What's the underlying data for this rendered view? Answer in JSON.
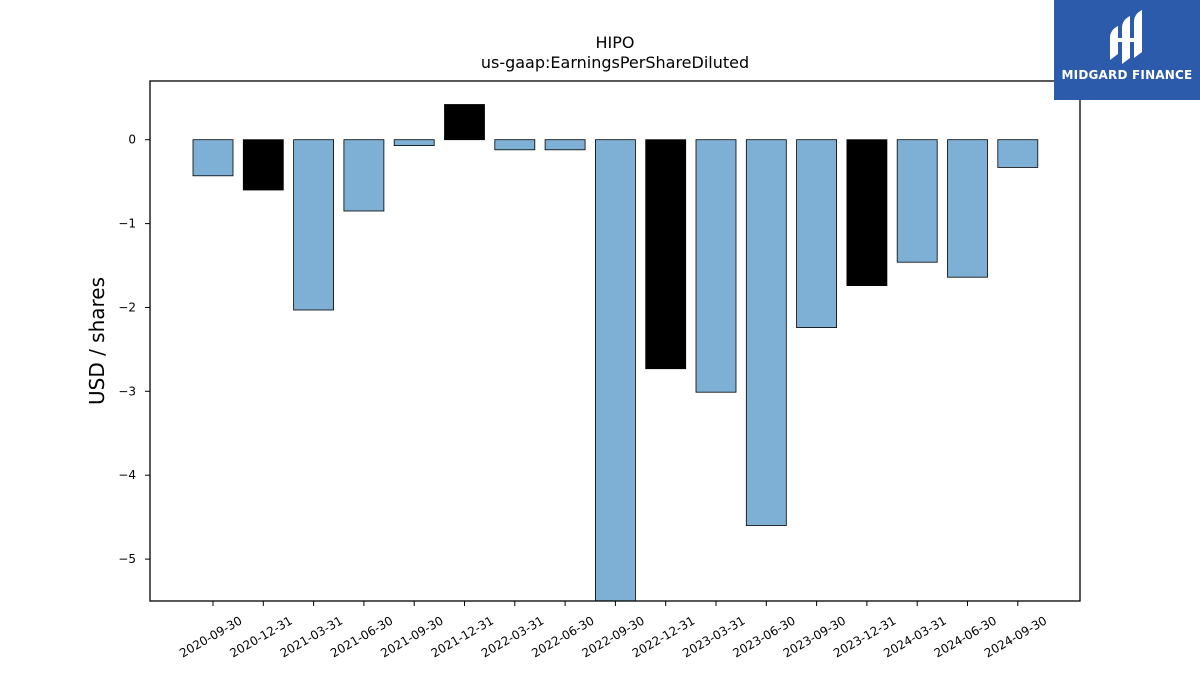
{
  "chart_data": {
    "type": "bar",
    "title": "HIPO",
    "subtitle": "us-gaap:EarningsPerShareDiluted",
    "xlabel": "",
    "ylabel": "USD / shares",
    "ylim": [
      -5.5,
      0.7
    ],
    "yticks": [
      0,
      -1,
      -2,
      -3,
      -4,
      -5
    ],
    "ytick_labels": [
      "0",
      "−1",
      "−2",
      "−3",
      "−4",
      "−5"
    ],
    "grid": false,
    "categories": [
      "2020-09-30",
      "2020-12-31",
      "2021-03-31",
      "2021-06-30",
      "2021-09-30",
      "2021-12-31",
      "2022-03-31",
      "2022-06-30",
      "2022-09-30",
      "2022-12-31",
      "2023-03-31",
      "2023-06-30",
      "2023-09-30",
      "2023-12-31",
      "2024-03-31",
      "2024-06-30",
      "2024-09-30"
    ],
    "values": [
      -0.43,
      -0.6,
      -2.03,
      -0.85,
      -0.07,
      0.42,
      -0.12,
      -0.12,
      -6.0,
      -2.73,
      -3.01,
      -4.6,
      -2.24,
      -1.74,
      -1.46,
      -1.64,
      -0.33
    ],
    "bar_colors": [
      "#7eb0d5",
      "#000000",
      "#7eb0d5",
      "#7eb0d5",
      "#7eb0d5",
      "#000000",
      "#7eb0d5",
      "#7eb0d5",
      "#7eb0d5",
      "#000000",
      "#7eb0d5",
      "#7eb0d5",
      "#7eb0d5",
      "#000000",
      "#7eb0d5",
      "#7eb0d5",
      "#7eb0d5"
    ]
  },
  "logo": {
    "text": "MIDGARD FINANCE",
    "background": "#2c5bab",
    "icon": "midgard-logo-icon"
  }
}
